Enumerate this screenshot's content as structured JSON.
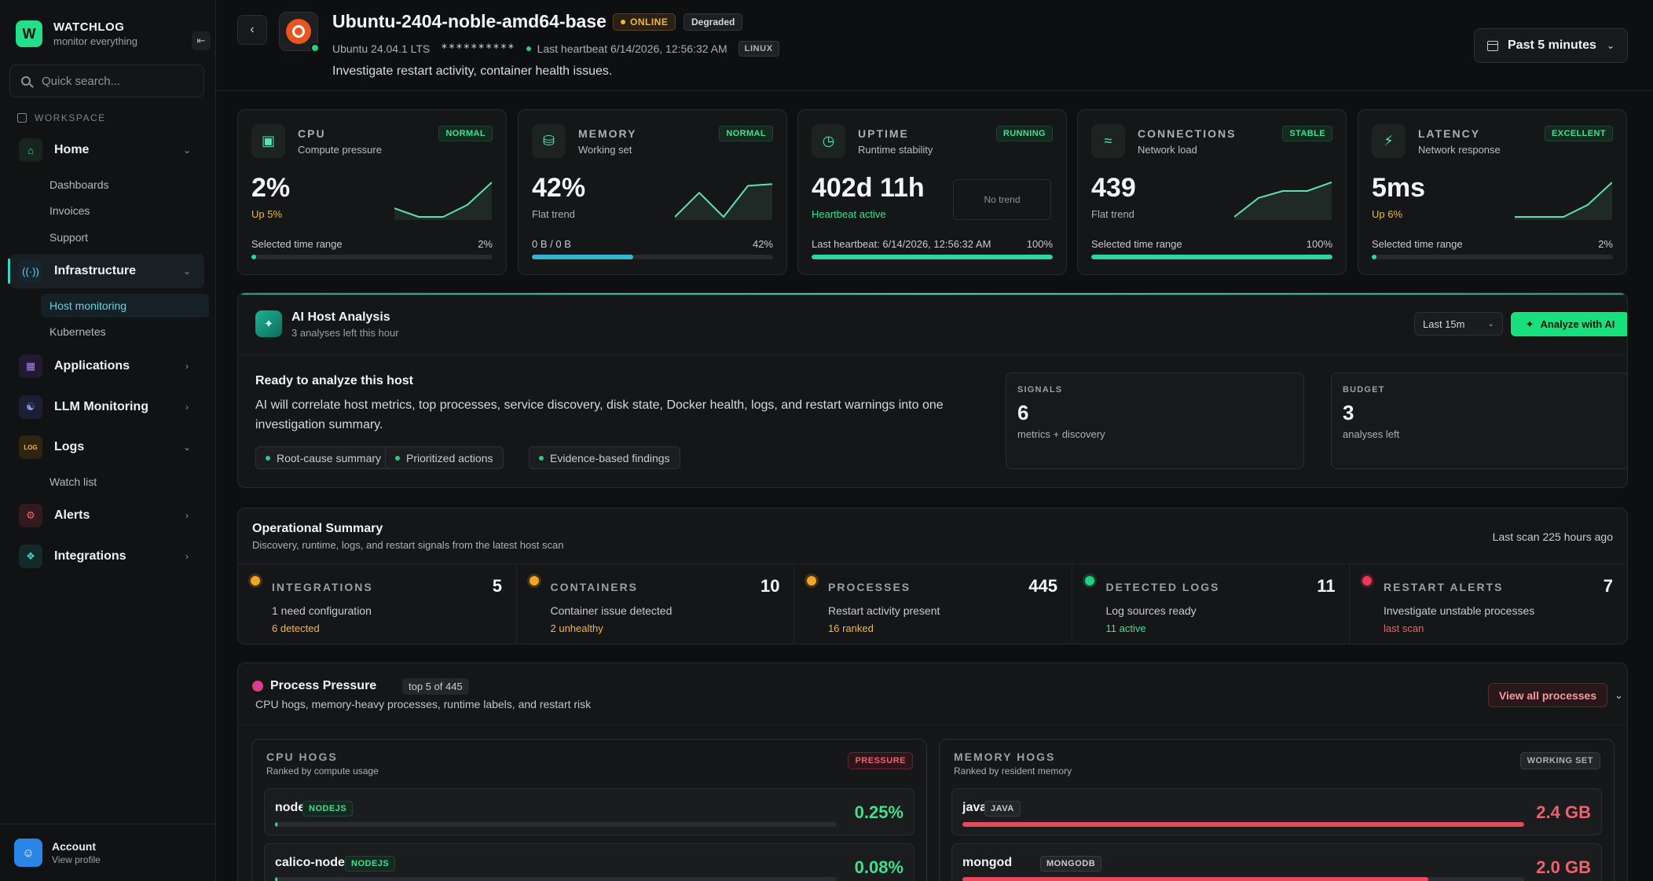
{
  "brand": {
    "logo": "W",
    "name": "WATCHLOG",
    "tagline": "monitor everything",
    "collapse_icon": "sidebar-collapse-icon"
  },
  "search": {
    "placeholder": "Quick search..."
  },
  "sidebar": {
    "section_label": "WORKSPACE",
    "items": [
      {
        "label": "Home",
        "icon": "home-icon",
        "chevron": "down",
        "children": [
          "Dashboards",
          "Invoices",
          "Support"
        ]
      },
      {
        "label": "Infrastructure",
        "icon": "radio-tower-icon",
        "chevron": "down",
        "active": true,
        "children": [
          "Host monitoring",
          "Kubernetes"
        ]
      },
      {
        "label": "Applications",
        "icon": "app-window-icon",
        "chevron": "right"
      },
      {
        "label": "LLM Monitoring",
        "icon": "chat-bot-icon",
        "chevron": "right"
      },
      {
        "label": "Logs",
        "icon": "log-icon",
        "icon_text": "LOG",
        "chevron": "down",
        "children": [
          "Watch list"
        ]
      },
      {
        "label": "Alerts",
        "icon": "bug-icon",
        "chevron": "right"
      },
      {
        "label": "Integrations",
        "icon": "puzzle-icon",
        "chevron": "right"
      }
    ],
    "active_child": "Host monitoring"
  },
  "account": {
    "name": "Account",
    "sub": "View profile"
  },
  "header": {
    "host_name": "Ubuntu-2404-noble-amd64-base",
    "status": "ONLINE",
    "health": "Degraded",
    "os": "Ubuntu 24.04.1 LTS",
    "ip": "**********",
    "heartbeat": "Last heartbeat 6/14/2026, 12:56:32 AM",
    "platform": "LINUX",
    "description": "Investigate restart activity, container health issues.",
    "time_range": "Past 5 minutes"
  },
  "metrics": [
    {
      "title": "CPU",
      "sub": "Compute pressure",
      "badge": "NORMAL",
      "value": "2%",
      "delta": "Up 5%",
      "delta_color": "#f5b73b",
      "foot_left": "Selected time range",
      "foot_right": "2%",
      "bar": 0.02,
      "bar_color": "#2fd4b6",
      "icon": "cpu-icon",
      "trend": [
        0.25,
        0.0,
        0.0,
        0.35,
        1.0
      ]
    },
    {
      "title": "MEMORY",
      "sub": "Working set",
      "badge": "NORMAL",
      "value": "42%",
      "delta": "Flat trend",
      "delta_color": "#aab0b6",
      "foot_left": "0 B / 0 B",
      "foot_right": "42%",
      "bar": 0.42,
      "bar_color": "#2fb8d4",
      "icon": "database-icon",
      "trend": [
        0.0,
        0.7,
        0.0,
        0.9,
        0.95
      ]
    },
    {
      "title": "UPTIME",
      "sub": "Runtime stability",
      "badge": "RUNNING",
      "value": "402d 11h",
      "delta": "Heartbeat active",
      "delta_color": "#3ee08f",
      "foot_left": "Last heartbeat: 6/14/2026, 12:56:32 AM",
      "foot_right": "100%",
      "bar": 1.0,
      "bar_color": "#2fd4a0",
      "icon": "clock-icon",
      "no_trend": "No trend"
    },
    {
      "title": "CONNECTIONS",
      "sub": "Network load",
      "badge": "STABLE",
      "value": "439",
      "delta": "Flat trend",
      "delta_color": "#aab0b6",
      "foot_left": "Selected time range",
      "foot_right": "100%",
      "bar": 1.0,
      "bar_color": "#2fd4a0",
      "icon": "wifi-icon",
      "trend": [
        0.0,
        0.55,
        0.75,
        0.75,
        1.0
      ]
    },
    {
      "title": "LATENCY",
      "sub": "Network response",
      "badge": "EXCELLENT",
      "value": "5ms",
      "delta": "Up 6%",
      "delta_color": "#f5b73b",
      "foot_left": "Selected time range",
      "foot_right": "2%",
      "bar": 0.02,
      "bar_color": "#2fd4b6",
      "icon": "bolt-icon",
      "trend": [
        0.0,
        0.0,
        0.0,
        0.35,
        1.0
      ]
    }
  ],
  "ai": {
    "title": "AI Host Analysis",
    "sub": "3 analyses left this hour",
    "range": "Last 15m",
    "button": "Analyze with AI",
    "heading": "Ready to analyze this host",
    "body": "AI will correlate host metrics, top processes, service discovery, disk state, Docker health, logs, and restart warnings into one investigation summary.",
    "chips": [
      "Root-cause summary",
      "Prioritized actions",
      "Evidence-based findings"
    ],
    "signals": {
      "label": "SIGNALS",
      "value": "6",
      "sub": "metrics + discovery"
    },
    "budget": {
      "label": "BUDGET",
      "value": "3",
      "sub": "analyses left"
    }
  },
  "ops": {
    "title": "Operational Summary",
    "sub": "Discovery, runtime, logs, and restart signals from the latest host scan",
    "scan": "Last scan 225 hours ago",
    "cells": [
      {
        "label": "INTEGRATIONS",
        "count": "5",
        "desc": "1 need configuration",
        "note": "6 detected",
        "dot": "#f5a524",
        "note_color": "#f5b73b"
      },
      {
        "label": "CONTAINERS",
        "count": "10",
        "desc": "Container issue detected",
        "note": "2 unhealthy",
        "dot": "#f5a524",
        "note_color": "#f5b73b"
      },
      {
        "label": "PROCESSES",
        "count": "445",
        "desc": "Restart activity present",
        "note": "16 ranked",
        "dot": "#f5a524",
        "note_color": "#f5b73b"
      },
      {
        "label": "DETECTED LOGS",
        "count": "11",
        "desc": "Log sources ready",
        "note": "11 active",
        "dot": "#22d07f",
        "note_color": "#3ee08f"
      },
      {
        "label": "RESTART ALERTS",
        "count": "7",
        "desc": "Investigate unstable processes",
        "note": "last scan",
        "dot": "#f0385a",
        "note_color": "#f06070"
      }
    ]
  },
  "pressure": {
    "title": "Process Pressure",
    "tag": "top 5 of 445",
    "sub": "CPU hogs, memory-heavy processes, runtime labels, and restart risk",
    "button": "View all processes",
    "cpu": {
      "title": "CPU HOGS",
      "sub": "Ranked by compute usage",
      "badge": "PRESSURE",
      "rows": [
        {
          "name": "node",
          "lang": "NODEJS",
          "value": "0.25%",
          "fill": 0.003
        },
        {
          "name": "calico-node",
          "lang": "NODEJS",
          "value": "0.08%",
          "fill": 0.001
        }
      ]
    },
    "mem": {
      "title": "MEMORY HOGS",
      "sub": "Ranked by resident memory",
      "badge": "WORKING SET",
      "rows": [
        {
          "name": "java",
          "lang": "JAVA",
          "value": "2.4 GB",
          "fill": 1.0
        },
        {
          "name": "mongod",
          "lang": "MONGODB",
          "value": "2.0 GB",
          "fill": 0.83
        }
      ]
    }
  }
}
